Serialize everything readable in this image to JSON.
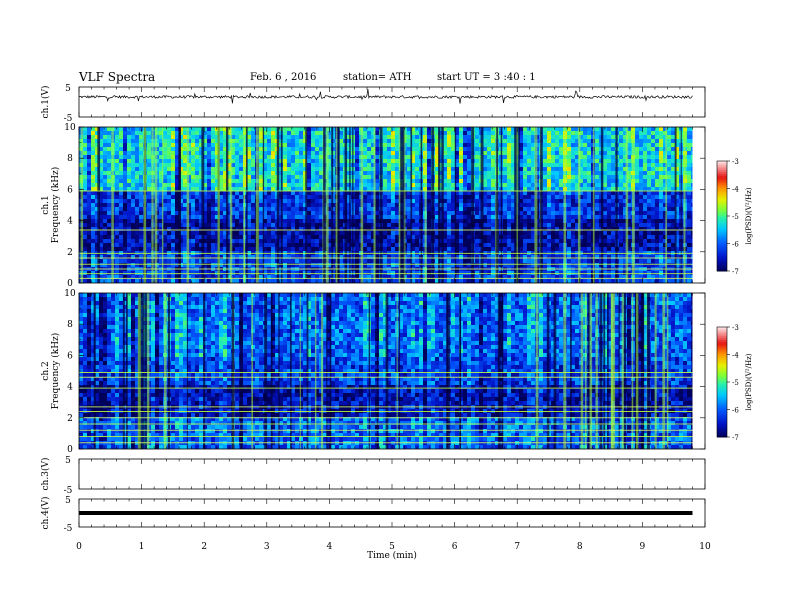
{
  "header": {
    "title": "VLF Spectra",
    "date": "Feb. 6  , 2016",
    "station": "station= ATH",
    "start": "start  UT  =   3  :40 : 1"
  },
  "chart_data": [
    {
      "type": "line",
      "panel": "ch1-waveform",
      "ylabel": "ch.1(V)",
      "y_ticks": [
        "5",
        "-5"
      ],
      "ylim": [
        -5,
        5
      ],
      "baseline": 1.7,
      "x": [
        0,
        1,
        2,
        3,
        4,
        5,
        6,
        7,
        8,
        9,
        9.8
      ],
      "y": [
        1.6,
        1.8,
        1.7,
        1.6,
        1.7,
        1.8,
        1.6,
        1.7,
        1.8,
        1.7,
        1.7
      ]
    },
    {
      "type": "heatmap",
      "panel": "ch1-spectrogram",
      "ylabel": "ch.1",
      "ylabel2": "Frequency (kHz)",
      "y_ticks": [
        "0",
        "2",
        "4",
        "6",
        "8",
        "10"
      ],
      "ylim": [
        0,
        10
      ],
      "xlim": [
        0,
        9.8
      ],
      "bands": [
        {
          "from": 0,
          "to": 2,
          "level": -6.2
        },
        {
          "from": 2,
          "to": 4,
          "level": -6.7
        },
        {
          "from": 4,
          "to": 6,
          "level": -6.3
        },
        {
          "from": 6,
          "to": 10,
          "level": -5.4
        }
      ],
      "colorbar": {
        "label": "log(PSD)(V²/Hz)",
        "ticks": [
          "-3",
          "-4",
          "-5",
          "-6",
          "-7"
        ],
        "range": [
          -7,
          -3
        ]
      }
    },
    {
      "type": "heatmap",
      "panel": "ch2-spectrogram",
      "ylabel": "ch.2",
      "ylabel2": "Frequency (kHz)",
      "y_ticks": [
        "0",
        "2",
        "4",
        "6",
        "8",
        "10"
      ],
      "ylim": [
        0,
        10
      ],
      "xlim": [
        0,
        9.8
      ],
      "bands": [
        {
          "from": 0,
          "to": 2,
          "level": -6.0
        },
        {
          "from": 2,
          "to": 4,
          "level": -6.6
        },
        {
          "from": 4,
          "to": 6,
          "level": -6.2
        },
        {
          "from": 6,
          "to": 10,
          "level": -6.0
        }
      ],
      "colorbar": {
        "label": "log(PSD)(V²/Hz)",
        "ticks": [
          "-3",
          "-4",
          "-5",
          "-6",
          "-7"
        ],
        "range": [
          -7,
          -3
        ]
      }
    },
    {
      "type": "line",
      "panel": "ch3-waveform",
      "ylabel": "ch.3(V)",
      "y_ticks": [
        "5",
        "-5"
      ],
      "ylim": [
        -5,
        5
      ],
      "x": [],
      "y": []
    },
    {
      "type": "line",
      "panel": "ch4-waveform",
      "ylabel": "ch.4(V)",
      "y_ticks": [
        "5",
        "-5"
      ],
      "ylim": [
        -5,
        5
      ],
      "x": [
        0,
        9.8
      ],
      "y": [
        0,
        0
      ]
    }
  ],
  "x_axis": {
    "label": "Time  (min)",
    "ticks": [
      "0",
      "1",
      "2",
      "3",
      "4",
      "5",
      "6",
      "7",
      "8",
      "9",
      "10"
    ],
    "xlim": [
      0,
      10
    ]
  }
}
